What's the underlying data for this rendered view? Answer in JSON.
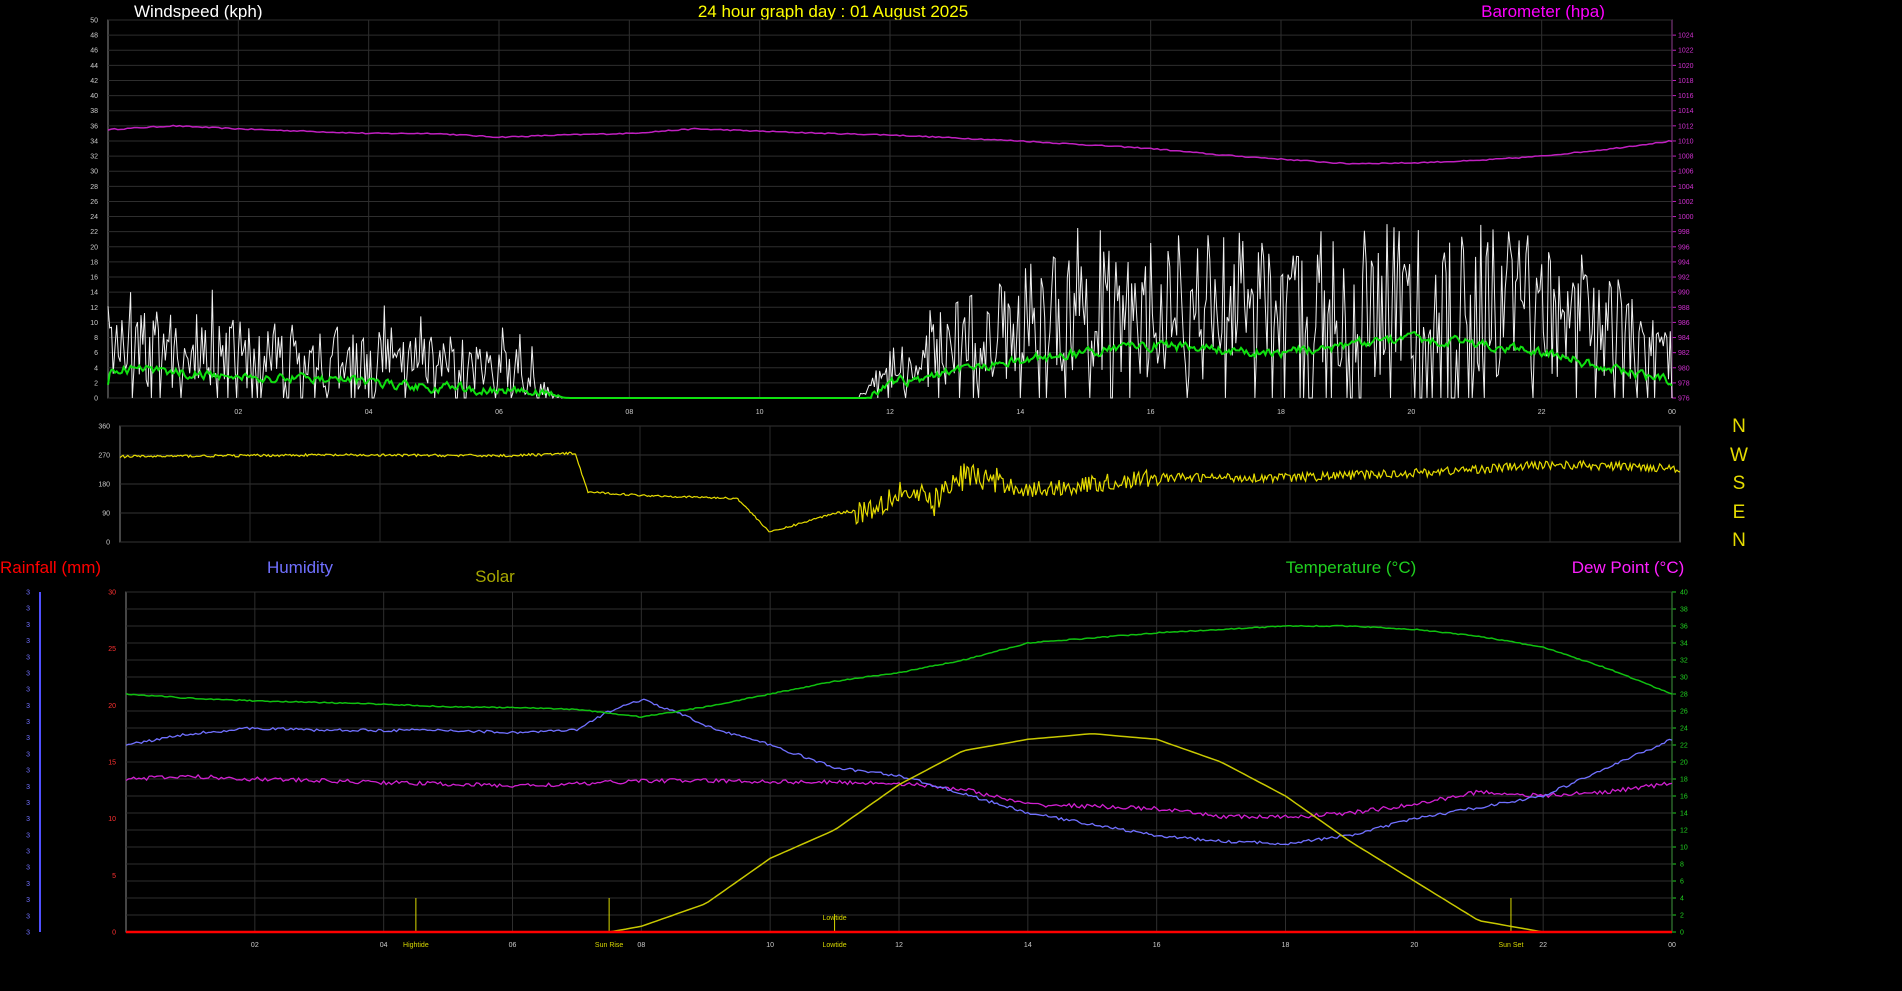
{
  "chart_data": [
    {
      "type": "line",
      "title": "24 hour graph day : 01 August 2025",
      "ylabel": "Windspeed (kph)",
      "y2label": "Barometer (hpa)",
      "x_ticks": [
        "02",
        "04",
        "06",
        "08",
        "10",
        "12",
        "14",
        "16",
        "18",
        "20",
        "22",
        "00"
      ],
      "ylim": [
        0,
        50
      ],
      "y_ticks": [
        0,
        2,
        4,
        6,
        8,
        10,
        12,
        14,
        16,
        18,
        20,
        22,
        24,
        26,
        28,
        30,
        32,
        34,
        36,
        38,
        40,
        42,
        44,
        46,
        48,
        50
      ],
      "y2lim": [
        976,
        1026
      ],
      "y2_ticks": [
        976,
        978,
        980,
        982,
        984,
        986,
        988,
        990,
        992,
        994,
        996,
        998,
        1000,
        1002,
        1004,
        1006,
        1008,
        1010,
        1012,
        1014,
        1016,
        1018,
        1020,
        1022,
        1024
      ],
      "grid": true,
      "colors": {
        "wind_gust": "#f0f0f0",
        "wind_avg": "#10e010",
        "barometer": "#c020c0",
        "title": "#ffff00",
        "wind_label": "#ffffff",
        "baro_label": "#ff00ff"
      },
      "series": [
        {
          "x": [
            0,
            2,
            4,
            6,
            7,
            11.5,
            12,
            14,
            16,
            18,
            19,
            20,
            22,
            24
          ],
          "values": [
            7,
            6,
            5,
            4,
            0,
            0,
            4,
            10,
            12,
            12,
            13,
            14,
            12,
            8
          ]
        },
        {
          "x": [
            0,
            2,
            4,
            6,
            7,
            11.5,
            12,
            14,
            16,
            18,
            19,
            20,
            22,
            24
          ],
          "values": [
            4,
            3,
            2,
            1,
            0,
            0,
            2,
            5,
            7,
            6,
            7,
            8,
            6,
            2
          ]
        },
        {
          "x": [
            0,
            1,
            2,
            3,
            4,
            5,
            6,
            7,
            8,
            9,
            10,
            11,
            12,
            13,
            14,
            15,
            16,
            17,
            18,
            19,
            20,
            21,
            22,
            23,
            24
          ],
          "values": [
            1011.5,
            1012,
            1011.6,
            1011.3,
            1011,
            1011,
            1010.5,
            1010.8,
            1011,
            1011.6,
            1011.3,
            1011,
            1010.8,
            1010.4,
            1010,
            1009.5,
            1009,
            1008.2,
            1007.6,
            1007,
            1007.1,
            1007.4,
            1008,
            1008.9,
            1010
          ]
        }
      ]
    },
    {
      "type": "line",
      "ylim": [
        0,
        360
      ],
      "y_ticks": [
        0,
        90,
        180,
        270,
        360
      ],
      "x_ticks": [],
      "grid": true,
      "colors": {
        "direction": "#e6dc00"
      },
      "compass": [
        "N",
        "W",
        "S",
        "E",
        "N"
      ],
      "series": [
        {
          "x": [
            0,
            3,
            6,
            7,
            7.2,
            8,
            9.5,
            10,
            11,
            11.5,
            12,
            12.5,
            13,
            14,
            16,
            18,
            20,
            22,
            24
          ],
          "values": [
            265,
            270,
            268,
            275,
            155,
            145,
            135,
            30,
            90,
            100,
            160,
            120,
            210,
            160,
            200,
            200,
            215,
            240,
            230
          ]
        }
      ]
    },
    {
      "type": "line",
      "legend": [
        "Rainfall (mm)",
        "Humidity",
        "Solar",
        "Temperature (°C)",
        "Dew Point (°C)"
      ],
      "x_ticks": [
        "02",
        "04",
        "06",
        "08",
        "10",
        "12",
        "14",
        "16",
        "18",
        "20",
        "22",
        "00"
      ],
      "ylim": [
        0,
        30
      ],
      "y_ticks": [
        0,
        5,
        10,
        15,
        20,
        25,
        30
      ],
      "left_small_ticks": [
        "3",
        "3",
        "3",
        "3",
        "3",
        "3",
        "3",
        "3",
        "3",
        "3",
        "3",
        "3",
        "3",
        "3",
        "3",
        "3",
        "3",
        "3",
        "3",
        "3",
        "3",
        "3"
      ],
      "y2lim": [
        0,
        40
      ],
      "y2_ticks": [
        0,
        2,
        4,
        6,
        8,
        10,
        12,
        14,
        16,
        18,
        20,
        22,
        24,
        26,
        28,
        30,
        32,
        34,
        36,
        38,
        40
      ],
      "grid": true,
      "colors": {
        "rainfall": "#ff0000",
        "humidity": "#7070ff",
        "solar": "#c8c800",
        "solar_label": "#a8a800",
        "temperature": "#10c010",
        "temperature_label": "#20d020",
        "dew_point": "#d020d0",
        "dew_label": "#ff20ff",
        "rain_axis": "#ff3030",
        "temp_axis": "#20d020",
        "tide": "#d8d800"
      },
      "series": [
        {
          "name": "Rainfall (mm)",
          "x": [
            0,
            24
          ],
          "values": [
            0,
            0
          ]
        },
        {
          "name": "Humidity",
          "x": [
            0,
            1,
            2,
            3,
            4,
            5,
            6,
            7,
            7.5,
            8,
            8.5,
            9,
            10,
            11,
            12,
            13,
            14,
            15,
            16,
            17,
            18,
            19,
            20,
            21,
            22,
            23,
            24
          ],
          "values": [
            16.5,
            17.5,
            18,
            17.8,
            17.8,
            17.8,
            17.6,
            17.8,
            19.5,
            20.5,
            19.5,
            18.2,
            16.5,
            14.5,
            13.8,
            12.2,
            10.5,
            9.5,
            8.5,
            8,
            7.8,
            8.5,
            10,
            11,
            12,
            14.5,
            17
          ]
        },
        {
          "name": "Solar",
          "x": [
            0,
            6,
            7.5,
            8,
            9,
            10,
            11,
            12,
            13,
            14,
            15,
            16,
            17,
            18,
            19,
            20,
            21,
            22,
            24
          ],
          "values": [
            0,
            0,
            0,
            0.5,
            2.5,
            6.5,
            9,
            13,
            16,
            17,
            17.5,
            17,
            15,
            12,
            8,
            4.5,
            1,
            0,
            0
          ]
        },
        {
          "name": "Temperature (°C)",
          "x": [
            0,
            1,
            2,
            3,
            4,
            5,
            6,
            7,
            8,
            9,
            10,
            11,
            12,
            13,
            14,
            15,
            16,
            17,
            18,
            19,
            20,
            21,
            22,
            23,
            24
          ],
          "values": [
            28,
            27.5,
            27.2,
            27,
            26.8,
            26.5,
            26.4,
            26.2,
            25.3,
            26.5,
            28,
            29.5,
            30.5,
            32,
            34,
            34.6,
            35.2,
            35.6,
            36,
            36,
            35.6,
            34.8,
            33.5,
            31,
            28
          ]
        },
        {
          "name": "Dew Point (°C)",
          "x": [
            0,
            1,
            2,
            3,
            4,
            5,
            6,
            7,
            8,
            9,
            10,
            11,
            12,
            13,
            14,
            15,
            16,
            17,
            18,
            19,
            20,
            21,
            22,
            23,
            24
          ],
          "values": [
            18,
            18.3,
            18,
            17.8,
            17.6,
            17.4,
            17.2,
            17.4,
            17.8,
            17.8,
            17.7,
            17.6,
            17.5,
            16.8,
            15,
            14.8,
            14.5,
            13.6,
            13.5,
            14,
            15,
            16.5,
            16,
            16.5,
            17.5
          ]
        }
      ],
      "tide_markers": [
        {
          "label": "Hightide",
          "x": 4.5
        },
        {
          "label": "Sun Rise",
          "x": 7.5
        },
        {
          "label": "Lowtide",
          "x": 11,
          "upper": true
        },
        {
          "label": "Sun Set",
          "x": 21.5
        }
      ],
      "tide_labels": {
        "hightide": "Hightide",
        "sunrise": "Sun Rise",
        "lowtide": "Lowtide",
        "sunset": "Sun Set"
      }
    }
  ]
}
